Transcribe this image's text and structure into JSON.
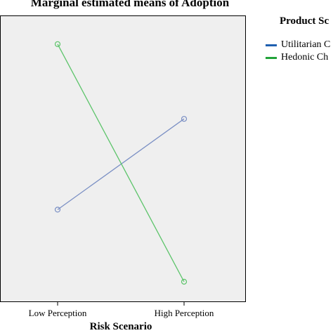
{
  "chart_data": {
    "type": "line",
    "title": "Marginal estimated means of Adoption",
    "xlabel": "Risk Scenario",
    "ylabel": "",
    "categories": [
      "Low Perception",
      "High Perception"
    ],
    "legend_title": "Product Sc",
    "legend_position": "right",
    "grid": false,
    "ylim": [
      0,
      10
    ],
    "series": [
      {
        "name": "Utilitarian C",
        "values": [
          3.2,
          6.6
        ],
        "line_color": "#7a8fc4",
        "legend_color": "#1f5fb0"
      },
      {
        "name": "Hedonic Ch",
        "values": [
          9.4,
          0.5
        ],
        "line_color": "#5cc46a",
        "legend_color": "#22a33a"
      }
    ]
  }
}
